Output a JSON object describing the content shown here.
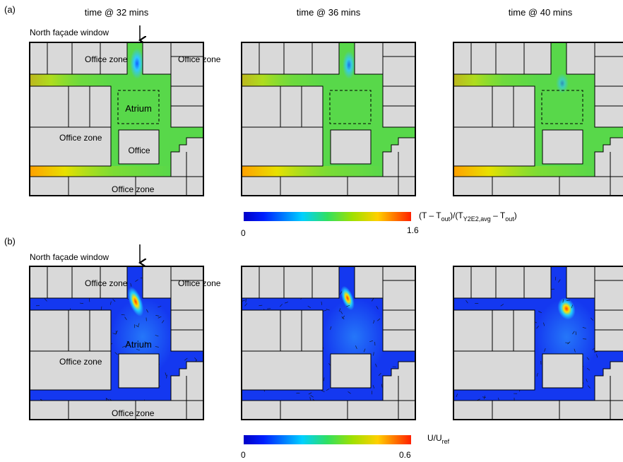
{
  "panel_letters": [
    "(a)",
    "(b)"
  ],
  "panel_titles": [
    "time @ 32 mins",
    "time @ 36  mins",
    "time @ 40 mins"
  ],
  "rows": [
    {
      "window_label": "North façade window",
      "zones": [
        "Office zone",
        "Office zone",
        "Office zone",
        "Office zone"
      ],
      "atrium": "Atrium",
      "office": "Office"
    },
    {
      "window_label": "North façade window",
      "zones": [
        "Office zone",
        "Office zone",
        "Office zone",
        "Office zone"
      ],
      "atrium": "Atrium"
    }
  ],
  "colorbars": [
    {
      "min": 0,
      "max": 1.6,
      "label_parts": [
        "(T – T",
        "out",
        ")/(T",
        "Y2E2,avg",
        " – T",
        "out",
        ")"
      ]
    },
    {
      "min": 0,
      "max": 0.6,
      "label_parts": [
        "U/U",
        "ref"
      ]
    }
  ]
}
